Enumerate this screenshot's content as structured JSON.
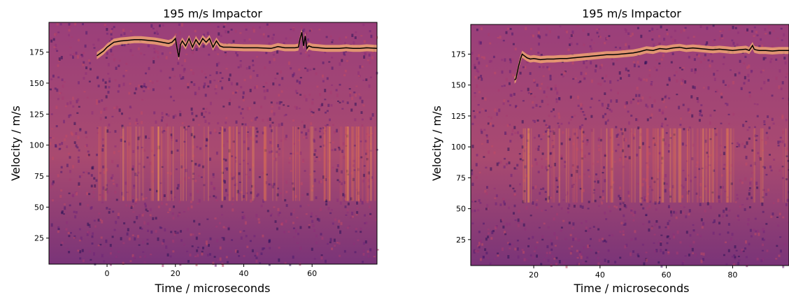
{
  "chart_data": [
    {
      "type": "heatmap",
      "title": "195 m/s Impactor",
      "xlabel": "Time / microseconds",
      "ylabel": "Velocity / m/s",
      "xlim": [
        -17,
        79
      ],
      "ylim": [
        4,
        199
      ],
      "xticks": [
        0,
        20,
        40,
        60
      ],
      "yticks": [
        25,
        50,
        75,
        100,
        125,
        150,
        175
      ],
      "colormap": "magma",
      "series": [
        {
          "x": [
            -3,
            -2,
            -1,
            0,
            1,
            2,
            4,
            6,
            8,
            10,
            12,
            14,
            16,
            18,
            19,
            20,
            20.5,
            21,
            21.5,
            22,
            23,
            24,
            25,
            26,
            27,
            28,
            29,
            30,
            31,
            32,
            33,
            34,
            36,
            40,
            44,
            48,
            50,
            52,
            55,
            56,
            56.5,
            57,
            57.5,
            58,
            58.5,
            59,
            60,
            62,
            64,
            66,
            68,
            70,
            72,
            74,
            76,
            79
          ],
          "y": [
            172,
            174,
            176,
            179,
            181,
            183,
            184,
            184.5,
            185,
            185,
            184.5,
            184,
            183,
            182,
            183,
            186,
            178,
            171,
            181,
            184,
            180,
            186,
            179,
            185,
            181,
            186,
            183,
            186,
            179,
            184,
            180,
            179,
            179,
            178.5,
            178.5,
            178,
            179.5,
            178.5,
            178.5,
            179,
            186,
            191,
            180,
            188,
            178,
            180,
            179,
            178.5,
            178,
            178,
            178,
            178.5,
            178,
            178,
            178.5,
            178
          ]
        }
      ]
    },
    {
      "type": "heatmap",
      "title": "195 m/s Impactor",
      "xlabel": "Time / microseconds",
      "ylabel": "Velocity / m/s",
      "xlim": [
        1,
        97
      ],
      "ylim": [
        4,
        199
      ],
      "xticks": [
        20,
        40,
        60,
        80
      ],
      "yticks": [
        25,
        50,
        75,
        100,
        125,
        150,
        175
      ],
      "colormap": "magma",
      "series": [
        {
          "x": [
            14.2,
            14.6,
            15,
            15.5,
            16,
            16.5,
            17,
            18,
            19,
            20,
            21,
            22,
            24,
            26,
            28,
            30,
            32,
            34,
            36,
            38,
            40,
            42,
            44,
            46,
            48,
            50,
            52,
            54,
            56,
            58,
            60,
            62,
            64,
            66,
            68,
            70,
            72,
            74,
            76,
            78,
            80,
            82,
            84,
            85,
            86,
            86.5,
            87,
            88,
            90,
            92,
            94,
            97
          ],
          "y": [
            154,
            155,
            160,
            166,
            171,
            175,
            174,
            172,
            171,
            171.5,
            171,
            170.5,
            171,
            171,
            171.5,
            171.5,
            172,
            172.5,
            173,
            173.5,
            174,
            174.5,
            174.5,
            175,
            175.5,
            176,
            177,
            178.5,
            178,
            179.5,
            179,
            180,
            180.5,
            179.5,
            180,
            179.5,
            179,
            178.5,
            179,
            178.5,
            178,
            178.5,
            179,
            178,
            182,
            179,
            178.5,
            178,
            178,
            177.5,
            178,
            178
          ]
        }
      ]
    }
  ]
}
